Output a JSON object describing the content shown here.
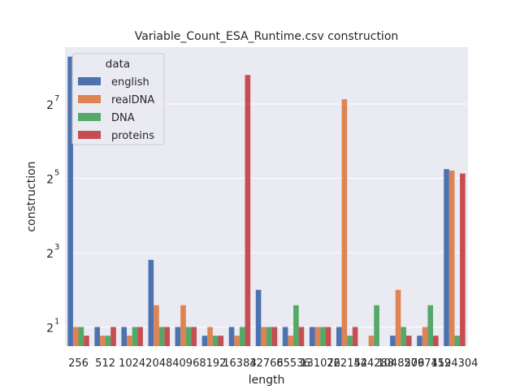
{
  "chart_data": {
    "type": "bar",
    "title": "Variable_Count_ESA_Runtime.csv construction",
    "xlabel": "length",
    "ylabel": "construction",
    "yscale": "log2",
    "ylim": [
      1.4,
      370
    ],
    "y_ticks": [
      {
        "value": 2,
        "base": "2",
        "exp": "1"
      },
      {
        "value": 8,
        "base": "2",
        "exp": "3"
      },
      {
        "value": 32,
        "base": "2",
        "exp": "5"
      },
      {
        "value": 128,
        "base": "2",
        "exp": "7"
      }
    ],
    "grid": true,
    "legend": {
      "title": "data",
      "placement": "top-left"
    },
    "categories": [
      "256",
      "512",
      "1024",
      "2048",
      "4096",
      "8192",
      "16384",
      "32768",
      "65536",
      "131072",
      "262144",
      "524288",
      "1048576",
      "2097152",
      "4194304"
    ],
    "series": [
      {
        "name": "english",
        "color": "#4c72b0",
        "values": [
          310,
          2,
          2,
          7,
          2,
          1.7,
          2,
          4,
          2,
          2,
          2,
          null,
          1.7,
          1.7,
          38
        ]
      },
      {
        "name": "realDNA",
        "color": "#dd8452",
        "values": [
          2,
          1.7,
          1.7,
          3,
          3,
          2,
          1.7,
          2,
          1.7,
          2,
          140,
          1.7,
          4,
          2,
          37
        ]
      },
      {
        "name": "DNA",
        "color": "#55a868",
        "values": [
          2,
          1.7,
          2,
          2,
          2,
          1.7,
          2,
          2,
          3,
          2,
          1.7,
          3,
          2,
          3,
          1.7
        ]
      },
      {
        "name": "proteins",
        "color": "#c44e52",
        "values": [
          1.7,
          2,
          2,
          2,
          2,
          1.7,
          220,
          2,
          2,
          2,
          2,
          null,
          1.7,
          1.7,
          35
        ]
      }
    ]
  }
}
